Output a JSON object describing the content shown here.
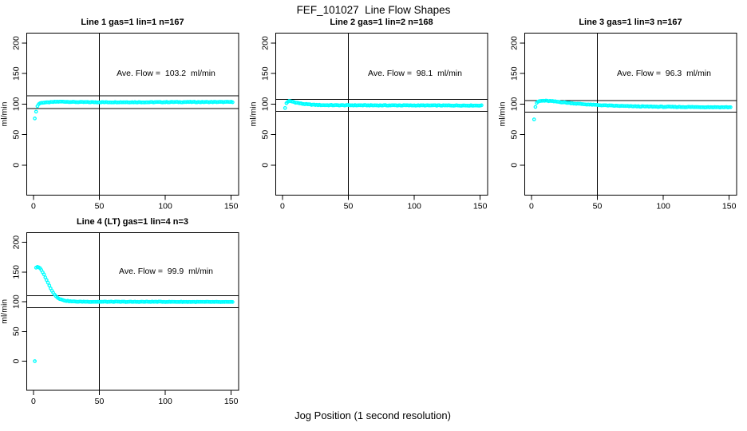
{
  "figure": {
    "title": "FEF_101027  Line Flow Shapes",
    "xlabel": "Jog Position (1 second resolution)",
    "background": "#ffffff",
    "axis_color": "#000000",
    "point_color": "#00ffff"
  },
  "chart_data": [
    {
      "type": "scatter",
      "title": "Line 1 gas=1 lin=1 n=167",
      "annotation": "Ave. Flow =  103.2  ml/min",
      "ave_flow_ml_min": 103.2,
      "ylabel": "ml/min",
      "x_ticks": [
        0,
        50,
        100,
        150
      ],
      "y_ticks": [
        0,
        50,
        100,
        150,
        200
      ],
      "xlim": [
        -5.1,
        155.6
      ],
      "ylim": [
        -49,
        216
      ],
      "grid": false,
      "vline_x": 50,
      "hlines": [
        113.5,
        92.9
      ],
      "jitter": 0.45,
      "trend": [
        [
          1,
          76
        ],
        [
          2,
          88
        ],
        [
          3,
          96.5
        ],
        [
          4,
          100
        ],
        [
          5,
          101.5
        ],
        [
          7,
          102.4
        ],
        [
          10,
          102.6
        ],
        [
          14,
          103.2
        ],
        [
          18,
          103.8
        ],
        [
          24,
          103.9
        ],
        [
          30,
          103.3
        ],
        [
          40,
          103.1
        ],
        [
          55,
          103.0
        ],
        [
          70,
          103.1
        ],
        [
          85,
          103.0
        ],
        [
          100,
          103.2
        ],
        [
          115,
          103.3
        ],
        [
          130,
          103.3
        ],
        [
          151,
          103.4
        ]
      ],
      "extra_points": []
    },
    {
      "type": "scatter",
      "title": "Line 2 gas=1 lin=2 n=168",
      "annotation": "Ave. Flow =  98.1  ml/min",
      "ave_flow_ml_min": 98.1,
      "ylabel": "ml/min",
      "x_ticks": [
        0,
        50,
        100,
        150
      ],
      "y_ticks": [
        0,
        50,
        100,
        150,
        200
      ],
      "xlim": [
        -5.1,
        155.6
      ],
      "ylim": [
        -49,
        216
      ],
      "grid": false,
      "vline_x": 50,
      "hlines": [
        107.9,
        88.3
      ],
      "jitter": 0.5,
      "trend": [
        [
          2,
          93.5
        ],
        [
          3,
          101.5
        ],
        [
          4,
          103.8
        ],
        [
          5,
          104.8
        ],
        [
          6,
          104.6
        ],
        [
          8,
          103.7
        ],
        [
          10,
          102.6
        ],
        [
          13,
          101.2
        ],
        [
          16,
          100.2
        ],
        [
          20,
          99.3
        ],
        [
          25,
          98.7
        ],
        [
          30,
          98.3
        ],
        [
          40,
          98.1
        ],
        [
          55,
          98.0
        ],
        [
          70,
          97.9
        ],
        [
          85,
          97.9
        ],
        [
          100,
          97.8
        ],
        [
          120,
          97.7
        ],
        [
          135,
          97.7
        ],
        [
          151,
          97.6
        ]
      ],
      "extra_points": []
    },
    {
      "type": "scatter",
      "title": "Line 3 gas=1 lin=3 n=167",
      "annotation": "Ave. Flow =  96.3  ml/min",
      "ave_flow_ml_min": 96.3,
      "ylabel": "ml/min",
      "x_ticks": [
        0,
        50,
        100,
        150
      ],
      "y_ticks": [
        0,
        50,
        100,
        150,
        200
      ],
      "xlim": [
        -5.1,
        155.6
      ],
      "ylim": [
        -49,
        216
      ],
      "grid": false,
      "vline_x": 50,
      "hlines": [
        105.9,
        86.7
      ],
      "jitter": 0.5,
      "trend": [
        [
          2,
          75
        ],
        [
          3,
          95.5
        ],
        [
          4,
          101.5
        ],
        [
          5,
          103.8
        ],
        [
          6,
          104.8
        ],
        [
          9,
          105.4
        ],
        [
          12,
          105.2
        ],
        [
          16,
          104.6
        ],
        [
          20,
          103.7
        ],
        [
          25,
          102.6
        ],
        [
          30,
          101.5
        ],
        [
          35,
          100.5
        ],
        [
          40,
          99.7
        ],
        [
          45,
          99.0
        ],
        [
          50,
          98.4
        ],
        [
          60,
          97.4
        ],
        [
          70,
          96.7
        ],
        [
          80,
          96.2
        ],
        [
          90,
          95.8
        ],
        [
          100,
          95.5
        ],
        [
          110,
          95.3
        ],
        [
          125,
          95.1
        ],
        [
          140,
          94.9
        ],
        [
          151,
          94.8
        ]
      ],
      "extra_points": []
    },
    {
      "type": "scatter",
      "title": "Line 4 (LT) gas=1 lin=4 n=3",
      "annotation": "Ave. Flow =  99.9  ml/min",
      "ave_flow_ml_min": 99.9,
      "ylabel": "ml/min",
      "x_ticks": [
        0,
        50,
        100,
        150
      ],
      "y_ticks": [
        0,
        50,
        100,
        150,
        200
      ],
      "xlim": [
        -5.1,
        155.6
      ],
      "ylim": [
        -49,
        216
      ],
      "grid": false,
      "vline_x": 50,
      "hlines": [
        109.9,
        89.9
      ],
      "jitter": 0.4,
      "trend": [
        [
          2,
          157.5
        ],
        [
          3,
          158.3
        ],
        [
          4,
          157.8
        ],
        [
          5,
          156.2
        ],
        [
          6,
          153.3
        ],
        [
          7,
          149.8
        ],
        [
          8,
          145.8
        ],
        [
          9,
          141.3
        ],
        [
          10,
          136.7
        ],
        [
          11,
          131.8
        ],
        [
          12,
          127.2
        ],
        [
          13,
          122.8
        ],
        [
          14,
          118.8
        ],
        [
          15,
          115.2
        ],
        [
          16,
          112.1
        ],
        [
          17,
          109.6
        ],
        [
          18,
          107.6
        ],
        [
          19,
          106.0
        ],
        [
          20,
          104.7
        ],
        [
          22,
          103.0
        ],
        [
          24,
          101.9
        ],
        [
          26,
          101.2
        ],
        [
          28,
          100.7
        ],
        [
          30,
          100.4
        ],
        [
          34,
          100.1
        ],
        [
          40,
          100.0
        ],
        [
          48,
          99.9
        ],
        [
          60,
          99.9
        ],
        [
          75,
          99.8
        ],
        [
          90,
          99.9
        ],
        [
          105,
          99.8
        ],
        [
          120,
          99.7
        ],
        [
          135,
          99.6
        ],
        [
          151,
          99.4
        ]
      ],
      "extra_points": [
        [
          1,
          0
        ]
      ]
    }
  ]
}
